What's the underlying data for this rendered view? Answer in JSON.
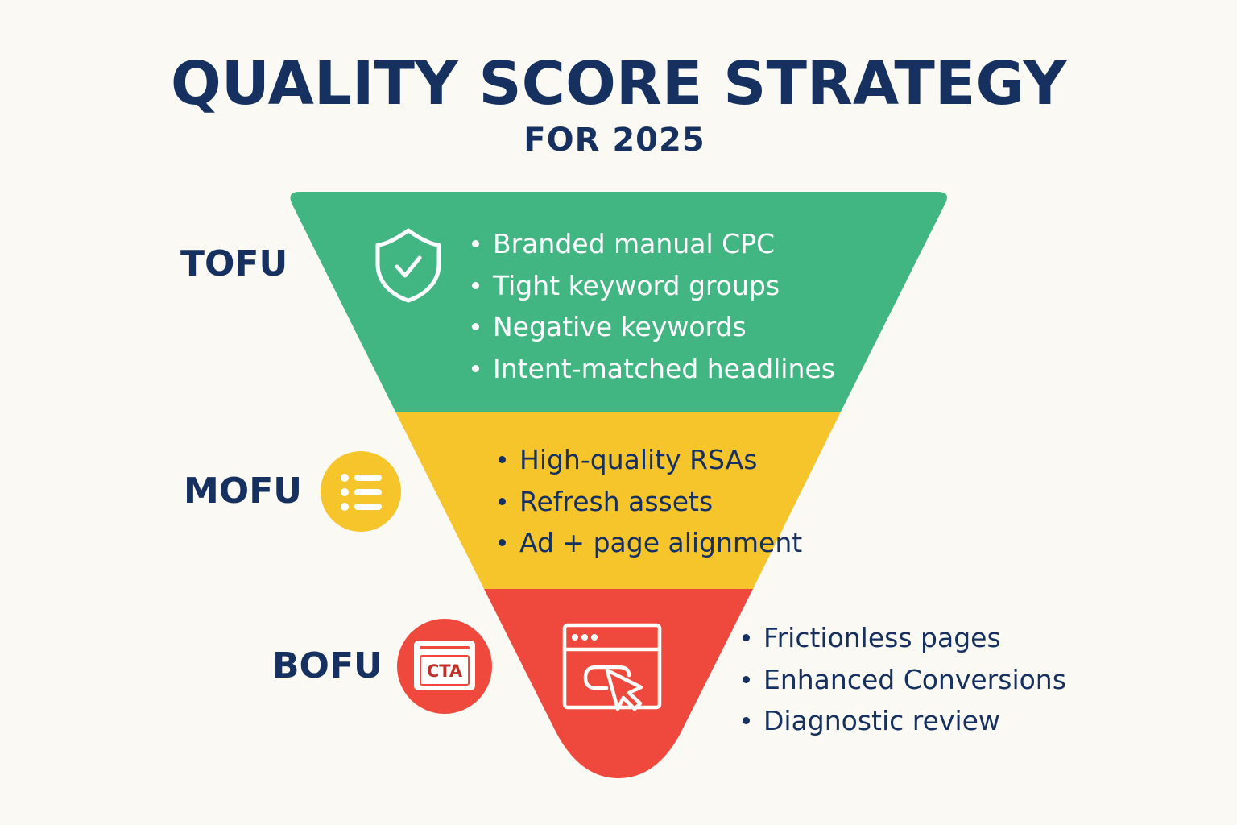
{
  "title": "QUALITY SCORE STRATEGY",
  "subtitle": "FOR 2025",
  "colors": {
    "tofu": "#41b582",
    "mofu": "#f6c42b",
    "bofu": "#ef483c",
    "text": "#16315f",
    "background": "#fbf9f3"
  },
  "stages": {
    "tofu": {
      "label": "TOFU",
      "icon": "shield-check-icon",
      "items": [
        "Branded manual CPC",
        "Tight keyword groups",
        "Negative keywords",
        "Intent-matched headlines"
      ]
    },
    "mofu": {
      "label": "MOFU",
      "icon": "list-icon",
      "items": [
        "High-quality RSAs",
        "Refresh assets",
        "Ad + page alignment"
      ]
    },
    "bofu": {
      "label": "BOFU",
      "icon": "cta-icon",
      "cta_text": "CTA",
      "funnel_icon": "browser-click-icon",
      "items": [
        "Frictionless pages",
        "Enhanced Conversions",
        "Diagnostic review"
      ]
    }
  }
}
